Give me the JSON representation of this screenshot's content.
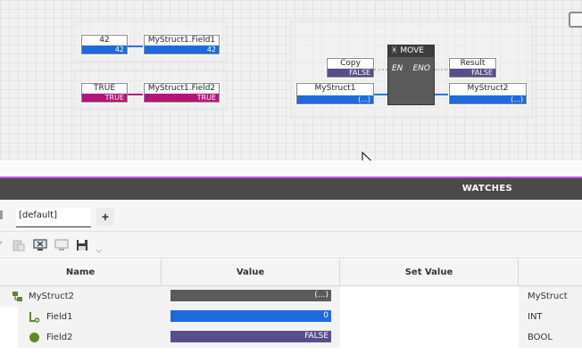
{
  "canvas": {
    "group1": {
      "literal_int": {
        "label": "42",
        "value": "42"
      },
      "target_int": {
        "label": "MyStruct1.Field1",
        "value": "42"
      }
    },
    "group2": {
      "literal_bool": {
        "label": "TRUE",
        "value": "TRUE"
      },
      "target_bool": {
        "label": "MyStruct1.Field2",
        "value": "TRUE"
      }
    },
    "group3": {
      "copy_var": {
        "label": "Copy",
        "value": "FALSE"
      },
      "src_var": {
        "label": "MyStruct1",
        "value": "(...)"
      },
      "result_var": {
        "label": "Result",
        "value": "FALSE"
      },
      "dst_var": {
        "label": "MyStruct2",
        "value": "(...)"
      },
      "block": {
        "title": "MOVE",
        "in_pin": "EN",
        "out_pin": "ENO"
      }
    }
  },
  "watches": {
    "title": "WATCHES",
    "tab_label": "[default]",
    "add_tab": "+",
    "columns": {
      "name": "Name",
      "value": "Value",
      "set_value": "Set Value"
    },
    "rows": [
      {
        "name": "MyStruct2",
        "value": "(...)",
        "type": "MyStruct"
      },
      {
        "name": "Field1",
        "value": "0",
        "type": "INT"
      },
      {
        "name": "Field2",
        "value": "FALSE",
        "type": "BOOL"
      }
    ]
  },
  "colors": {
    "int": "#1e6ae0",
    "bool_true": "#b5157a",
    "bool_false": "#5a4e8a",
    "struct": "#5a5a5a",
    "accent": "#c04be8"
  },
  "icons": [
    "copy-icon",
    "paste-icon",
    "monitor-add-icon",
    "monitor-remove-icon",
    "save-icon",
    "struct-icon",
    "int-field-icon",
    "bool-field-icon",
    "settings-icon",
    "tab-edge-icon"
  ]
}
